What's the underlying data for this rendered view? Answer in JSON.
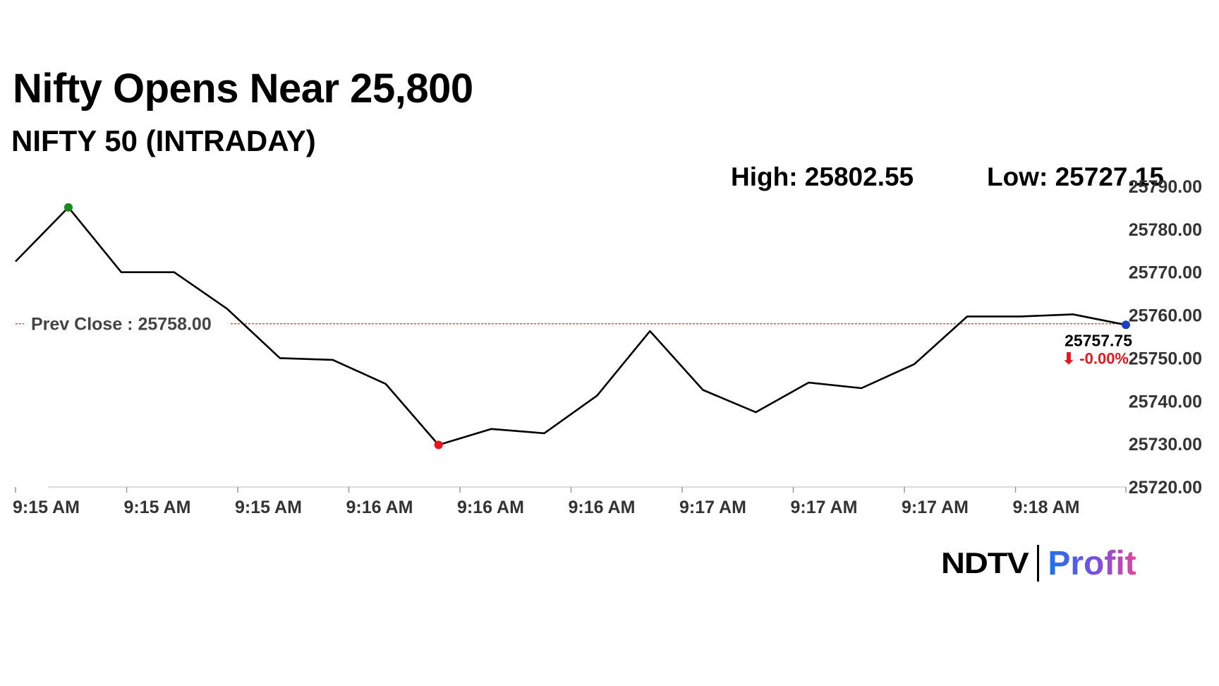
{
  "header": {
    "title": "Nifty Opens Near 25,800",
    "subtitle": "NIFTY 50 (INTRADAY)",
    "high": "High: 25802.55",
    "low": "Low: 25727.15"
  },
  "brand": {
    "left": "NDTV",
    "right": "Profit"
  },
  "chart_data": {
    "type": "line",
    "title": "NIFTY 50 (INTRADAY)",
    "y_ticks": [
      "25720.00",
      "25730.00",
      "25740.00",
      "25750.00",
      "25760.00",
      "25770.00",
      "25780.00",
      "25790.00"
    ],
    "ylim": [
      25720,
      25790
    ],
    "x_ticks": [
      "9:15 AM",
      "9:15 AM",
      "9:15 AM",
      "9:16 AM",
      "9:16 AM",
      "9:16 AM",
      "9:17 AM",
      "9:17 AM",
      "9:17 AM",
      "9:18 AM"
    ],
    "series": [
      {
        "values": [
          25772.5,
          25785.1,
          25770.0,
          25770.0,
          25761.5,
          25750.0,
          25749.6,
          25744.0,
          25729.8,
          25733.5,
          25732.5,
          25741.3,
          25756.3,
          25742.6,
          25737.4,
          25744.3,
          25743.0,
          25748.6,
          25759.7,
          25759.7,
          25760.2,
          25757.75
        ],
        "color": "#000000"
      }
    ],
    "markers": {
      "high_color": "#1a8a1a",
      "low_color": "#e8141e",
      "last_color": "#1f3fbf"
    },
    "prev_close": {
      "label": "Prev Close : 25758.00",
      "value": 25758.0,
      "color": "#c0392b"
    },
    "last_value": {
      "value": "25757.75",
      "change": "⬇ -0.00%",
      "change_color": "#e8141e"
    },
    "grid": false
  }
}
